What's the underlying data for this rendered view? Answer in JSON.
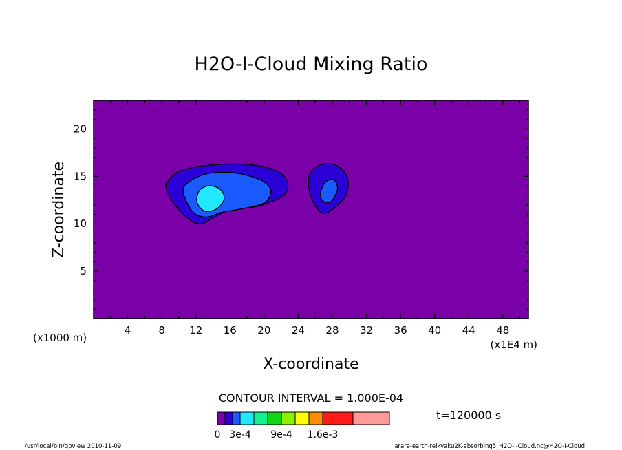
{
  "chart_data": {
    "type": "contour",
    "title": "H2O-I-Cloud Mixing Ratio",
    "xlabel": "X-coordinate",
    "ylabel": "Z-coordinate",
    "x_unit_left": "(x1000 m)",
    "x_unit_right": "(x1E4 m)",
    "xlim": [
      0,
      51
    ],
    "ylim": [
      0,
      23
    ],
    "x_ticks": [
      "4",
      "8",
      "12",
      "16",
      "20",
      "24",
      "28",
      "32",
      "36",
      "40",
      "44",
      "48"
    ],
    "y_ticks": [
      "5",
      "10",
      "15",
      "20"
    ],
    "contour_interval_text": "CONTOUR INTERVAL = 1.000E-04",
    "time_label": "t=120000 s",
    "colorbar": {
      "labels": [
        "0",
        "3e-4",
        "9e-4",
        "1.6e-3"
      ],
      "colors": [
        "#7a00a8",
        "#2a00d6",
        "#1a5bff",
        "#20e8ff",
        "#14f08c",
        "#14d414",
        "#8cf000",
        "#ffff00",
        "#ff8c00",
        "#ff1a1a",
        "#ff9a9a"
      ]
    },
    "background_color": "#7a00a8",
    "levels": [
      {
        "level": 1,
        "color": "#2a00d6",
        "cells": [
          {
            "name": "main-cell",
            "cx": 16.6,
            "cz": 13.5,
            "poly": [
              [
                8.5,
                14.0
              ],
              [
                9,
                14.8
              ],
              [
                10,
                15.5
              ],
              [
                12,
                16.0
              ],
              [
                14,
                16.2
              ],
              [
                17,
                16.3
              ],
              [
                20,
                16.0
              ],
              [
                22,
                15.3
              ],
              [
                22.8,
                14.0
              ],
              [
                22,
                12.8
              ],
              [
                19,
                11.8
              ],
              [
                16,
                11.5
              ],
              [
                14,
                10.6
              ],
              [
                12.5,
                10.0
              ],
              [
                11,
                10.6
              ],
              [
                9.2,
                12.4
              ]
            ]
          },
          {
            "name": "east-cell",
            "cx": 27.7,
            "cz": 13.5,
            "poly": [
              [
                25.2,
                14.2
              ],
              [
                25.6,
                15.6
              ],
              [
                27,
                16.3
              ],
              [
                28.6,
                16.1
              ],
              [
                29.8,
                14.8
              ],
              [
                29.6,
                13.0
              ],
              [
                28.4,
                11.8
              ],
              [
                27,
                11.1
              ],
              [
                25.8,
                12.2
              ]
            ]
          }
        ]
      },
      {
        "name_level": "level-2",
        "level": 2,
        "color": "#1a5bff",
        "cells": [
          {
            "name": "main-cell",
            "cx": 17,
            "cz": 13,
            "poly": [
              [
                10.5,
                13.5
              ],
              [
                11.5,
                14.6
              ],
              [
                13.5,
                15.3
              ],
              [
                16,
                15.4
              ],
              [
                18,
                15.1
              ],
              [
                20,
                14.4
              ],
              [
                20.8,
                13.4
              ],
              [
                20,
                12.2
              ],
              [
                17.5,
                11.6
              ],
              [
                15,
                11.2
              ],
              [
                13.2,
                10.7
              ],
              [
                11.6,
                11.3
              ]
            ]
          },
          {
            "name": "east-cell",
            "cx": 27.6,
            "cz": 13.3,
            "poly": [
              [
                26.6,
                13.2
              ],
              [
                27.2,
                14.4
              ],
              [
                28.2,
                14.6
              ],
              [
                28.6,
                13.6
              ],
              [
                27.8,
                12.3
              ],
              [
                26.9,
                12.4
              ]
            ]
          }
        ]
      },
      {
        "level": 3,
        "color": "#20e8ff",
        "cells": [
          {
            "name": "core-cell",
            "cx": 13.8,
            "cz": 12.6,
            "poly": [
              [
                12.1,
                12.6
              ],
              [
                12.5,
                13.6
              ],
              [
                13.6,
                14.0
              ],
              [
                14.9,
                13.6
              ],
              [
                15.3,
                12.6
              ],
              [
                14.5,
                11.6
              ],
              [
                13.2,
                11.3
              ],
              [
                12.4,
                11.8
              ]
            ]
          }
        ]
      }
    ]
  },
  "footer": {
    "left": "/usr/local/bin/gpview   2010-11-09",
    "right": "arare-earth-reikyaku2K-absorbing5_H2O-I-Cloud.nc@H2O-I-Cloud"
  }
}
